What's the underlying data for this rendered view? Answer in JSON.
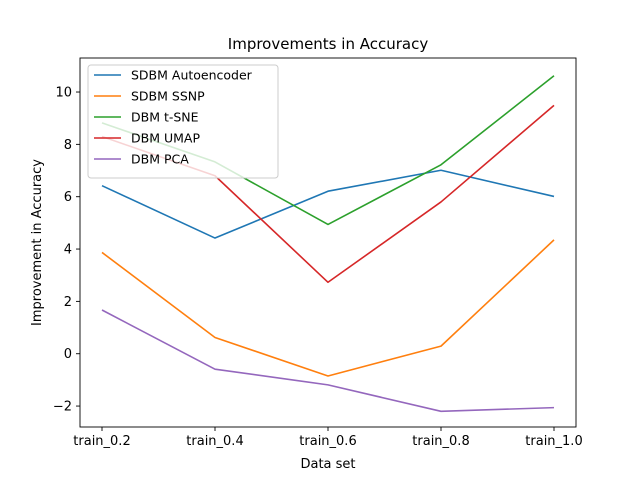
{
  "chart_data": {
    "type": "line",
    "title": "Improvements in Accuracy",
    "xlabel": "Data set",
    "ylabel": "Improvement in Accuracy",
    "categories": [
      "train_0.2",
      "train_0.4",
      "train_0.6",
      "train_0.8",
      "train_1.0"
    ],
    "ylim": [
      -2.8,
      11.3
    ],
    "yticks": [
      -2,
      0,
      2,
      4,
      6,
      8,
      10
    ],
    "ytick_labels": [
      "−2",
      "0",
      "2",
      "4",
      "6",
      "8",
      "10"
    ],
    "grid": false,
    "legend_position": "upper-left",
    "series": [
      {
        "name": "SDBM Autoencoder",
        "color": "#1f77b4",
        "values": [
          6.42,
          4.42,
          6.21,
          7.01,
          6.01
        ]
      },
      {
        "name": "SDBM SSNP",
        "color": "#ff7f0e",
        "values": [
          3.87,
          0.62,
          -0.85,
          0.29,
          4.35
        ]
      },
      {
        "name": "DBM t-SNE",
        "color": "#2ca02c",
        "values": [
          8.82,
          7.33,
          4.94,
          7.22,
          10.62
        ]
      },
      {
        "name": "DBM UMAP",
        "color": "#d62728",
        "values": [
          8.3,
          6.8,
          2.73,
          5.8,
          9.49
        ]
      },
      {
        "name": "DBM PCA",
        "color": "#9467bd",
        "values": [
          1.67,
          -0.59,
          -1.19,
          -2.2,
          -2.06
        ]
      }
    ]
  }
}
